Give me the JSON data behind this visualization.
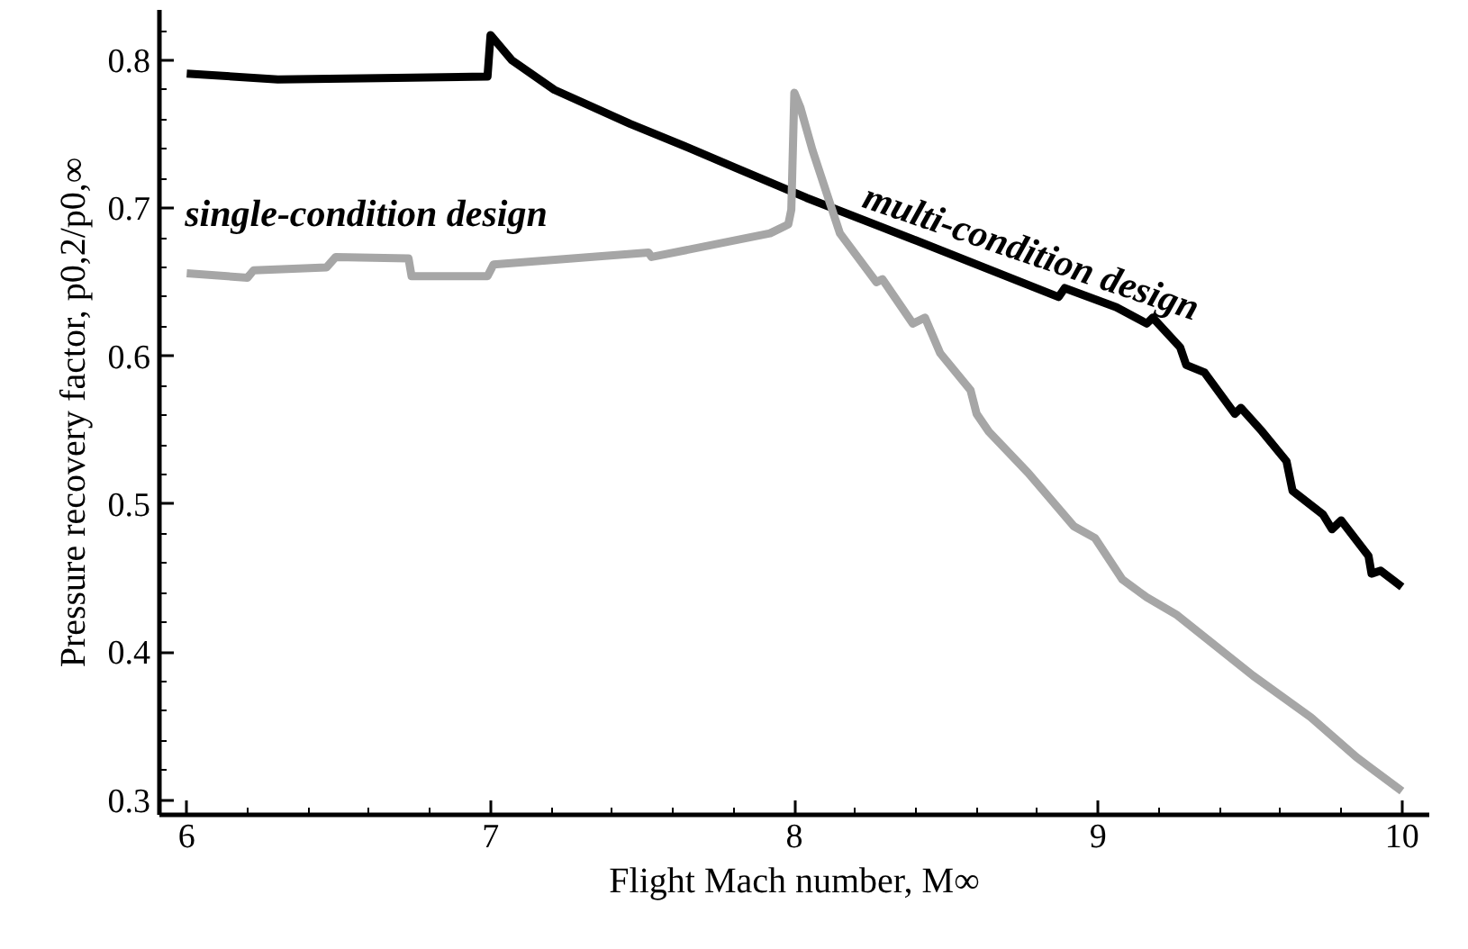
{
  "chart_data": {
    "type": "line",
    "xlabel": "Flight Mach number, M∞",
    "ylabel": "Pressure recovery factor, p0,2/p0,∞",
    "xlim": [
      5.91,
      10.09
    ],
    "ylim": [
      0.29,
      0.834
    ],
    "xticks": [
      6,
      7,
      8,
      9,
      10
    ],
    "yticks": [
      0.3,
      0.4,
      0.5,
      0.6,
      0.7,
      0.8
    ],
    "grid": false,
    "marker": "none",
    "line_style": "solid",
    "series": [
      {
        "color": "#000000",
        "x": [
          6.0,
          6.3,
          6.69,
          6.99,
          7.0,
          7.07,
          7.21,
          7.46,
          7.65,
          7.81,
          8.04,
          8.39,
          8.87,
          8.89,
          9.06,
          9.16,
          9.18,
          9.27,
          9.29,
          9.35,
          9.45,
          9.47,
          9.54,
          9.62,
          9.64,
          9.74,
          9.77,
          9.8,
          9.89,
          9.9,
          9.93,
          10.0
        ],
        "values": [
          0.791,
          0.787,
          0.788,
          0.789,
          0.817,
          0.8,
          0.78,
          0.757,
          0.741,
          0.727,
          0.707,
          0.679,
          0.64,
          0.646,
          0.633,
          0.622,
          0.626,
          0.606,
          0.594,
          0.589,
          0.561,
          0.565,
          0.549,
          0.529,
          0.509,
          0.493,
          0.483,
          0.489,
          0.465,
          0.453,
          0.455,
          0.444
        ]
      },
      {
        "color": "#a6a6a6",
        "x": [
          6.0,
          6.2,
          6.22,
          6.46,
          6.49,
          6.73,
          6.74,
          6.99,
          7.01,
          7.52,
          7.53,
          7.92,
          7.98,
          7.99,
          8.0,
          8.02,
          8.06,
          8.15,
          8.27,
          8.29,
          8.39,
          8.43,
          8.48,
          8.58,
          8.6,
          8.64,
          8.77,
          8.92,
          8.99,
          9.08,
          9.16,
          9.26,
          9.51,
          9.7,
          9.85,
          10.0
        ],
        "values": [
          0.656,
          0.653,
          0.658,
          0.66,
          0.667,
          0.666,
          0.654,
          0.654,
          0.662,
          0.67,
          0.667,
          0.683,
          0.689,
          0.699,
          0.778,
          0.768,
          0.739,
          0.683,
          0.65,
          0.652,
          0.622,
          0.626,
          0.602,
          0.577,
          0.561,
          0.549,
          0.521,
          0.485,
          0.477,
          0.449,
          0.437,
          0.425,
          0.384,
          0.356,
          0.329,
          0.306
        ]
      }
    ],
    "annotations": [
      "single-condition design",
      "multi-condition design"
    ]
  }
}
